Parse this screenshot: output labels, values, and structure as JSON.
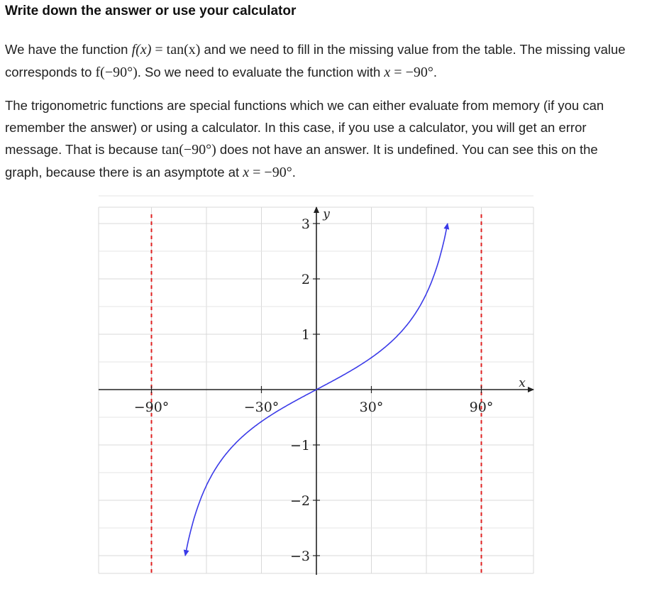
{
  "heading": "Write down the answer or use your calculator",
  "paragraph1": {
    "t1": "We have the function",
    "f_of_x": "f(x)",
    "eq1": " = tan(x)",
    "t2": " and we need to fill in the missing value from the table. The missing value corresponds to ",
    "f_val": "f(−90°)",
    "t3": ". So we need to evaluate the function with ",
    "x_var": "x",
    "eq2": " = −90°",
    "t4": "."
  },
  "paragraph2": {
    "t1": "The trigonometric functions are special functions which we can either evaluate from memory (if you can remember the answer) or using a calculator. In this case, if you use a calculator, you will get an error message. That is because ",
    "tan_expr": "tan(−90°)",
    "t2": " does not have an answer. It is undefined. You can see this on the graph, because there is an asymptote at ",
    "x_var": "x",
    "eq": " = −90°",
    "t3": "."
  },
  "graph": {
    "x_axis_label": "x",
    "y_axis_label": "y",
    "x_tick_labels": [
      "−90°",
      "−30°",
      "30°",
      "90°"
    ],
    "y_tick_labels": [
      "3",
      "2",
      "1",
      "−1",
      "−2",
      "−3"
    ],
    "colors": {
      "curve": "#3a3ae8",
      "asymptote": "#e02020",
      "grid": "#d8d8d8",
      "axis": "#222222"
    }
  },
  "chart_data": {
    "type": "line",
    "function": "tan(x)",
    "xlim": [
      -105,
      105
    ],
    "ylim": [
      -3.2,
      3.2
    ],
    "x_ticks": [
      -90,
      -30,
      30,
      90
    ],
    "y_ticks": [
      -3,
      -2,
      -1,
      1,
      2,
      3
    ],
    "asymptotes_x": [
      -90,
      90
    ],
    "series": [
      {
        "x": [
          -71.6,
          -70,
          -60,
          -45,
          -30,
          -15,
          0,
          15,
          30,
          45,
          60,
          70,
          71.6
        ],
        "y": [
          -3.0,
          -2.75,
          -1.73,
          -1.0,
          -0.58,
          -0.27,
          0,
          0.27,
          0.58,
          1.0,
          1.73,
          2.75,
          3.0
        ]
      }
    ],
    "grid": true
  }
}
